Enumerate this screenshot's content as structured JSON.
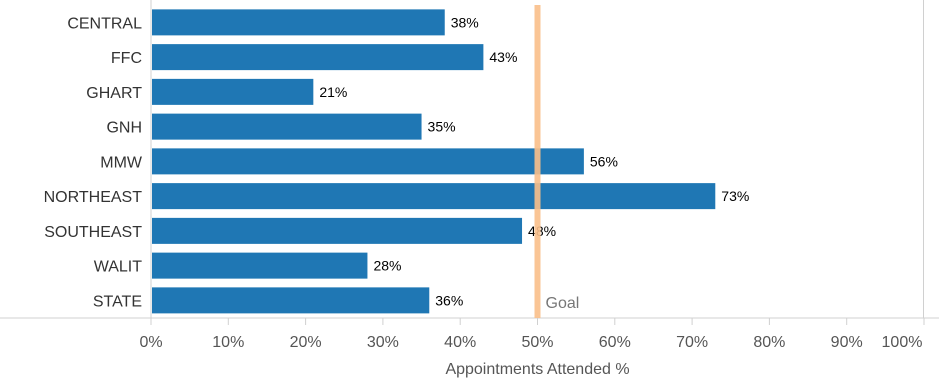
{
  "chart_data": {
    "type": "bar",
    "orientation": "horizontal",
    "categories": [
      "CENTRAL",
      "FFC",
      "GHART",
      "GNH",
      "MMW",
      "NORTHEAST",
      "SOUTHEAST",
      "WALIT",
      "STATE"
    ],
    "values": [
      38,
      43,
      21,
      35,
      56,
      73,
      48,
      28,
      36
    ],
    "value_labels": [
      "38%",
      "43%",
      "21%",
      "35%",
      "56%",
      "73%",
      "48%",
      "28%",
      "36%"
    ],
    "xlabel": "Appointments Attended %",
    "xlim": [
      0,
      100
    ],
    "x_ticks": [
      0,
      10,
      20,
      30,
      40,
      50,
      60,
      70,
      80,
      90,
      100
    ],
    "x_tick_labels": [
      "0%",
      "10%",
      "20%",
      "30%",
      "40%",
      "50%",
      "60%",
      "70%",
      "80%",
      "90%",
      "100%"
    ],
    "reference_line": {
      "value": 50,
      "label": "Goal"
    },
    "colors": {
      "bar": "#1f77b4",
      "goal_line": "#f9bf8a",
      "axis": "#d0d0d0"
    },
    "grid": false
  }
}
